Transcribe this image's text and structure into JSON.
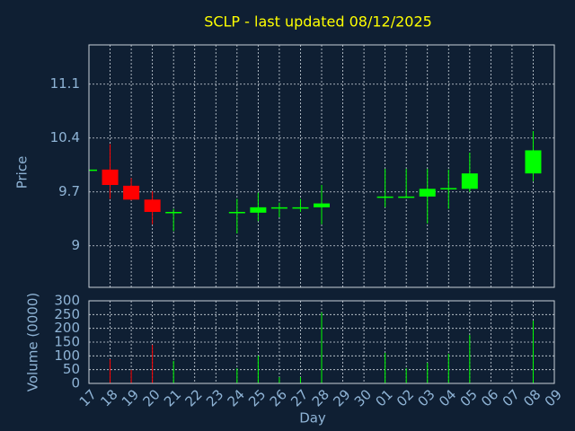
{
  "chart_data": {
    "type": "candlestick",
    "title": "SCLP - last updated 08/12/2025",
    "xlabel": "Day",
    "ylabel": "Price",
    "volume_label": "Volume (0000)",
    "categories": [
      "17",
      "18",
      "19",
      "20",
      "21",
      "22",
      "23",
      "24",
      "25",
      "26",
      "27",
      "28",
      "29",
      "30",
      "01",
      "02",
      "03",
      "04",
      "05",
      "06",
      "07",
      "08",
      "09"
    ],
    "open": [
      9.99,
      9.99,
      9.78,
      9.6,
      9.43,
      null,
      null,
      9.43,
      9.43,
      9.49,
      9.49,
      9.5,
      null,
      null,
      9.63,
      9.63,
      9.64,
      9.74,
      9.74,
      null,
      null,
      9.94,
      null
    ],
    "high": [
      9.99,
      10.32,
      9.88,
      9.71,
      9.48,
      null,
      null,
      9.61,
      9.69,
      9.56,
      9.61,
      9.79,
      null,
      null,
      10.0,
      10.0,
      10.0,
      9.99,
      10.21,
      null,
      null,
      10.49,
      null
    ],
    "low": [
      9.99,
      9.61,
      9.59,
      9.28,
      9.19,
      null,
      null,
      9.16,
      9.32,
      9.37,
      9.44,
      9.28,
      null,
      null,
      9.5,
      9.62,
      9.29,
      9.48,
      9.7,
      null,
      null,
      9.84,
      null
    ],
    "close": [
      9.99,
      9.79,
      9.6,
      9.44,
      9.44,
      null,
      null,
      9.44,
      9.5,
      9.5,
      9.5,
      9.55,
      null,
      null,
      9.64,
      9.64,
      9.74,
      9.75,
      9.94,
      null,
      null,
      10.24,
      null
    ],
    "volume": [
      0,
      88,
      49,
      140,
      82,
      null,
      null,
      55,
      101,
      23,
      23,
      258,
      null,
      null,
      111,
      55,
      75,
      108,
      176,
      null,
      null,
      228,
      null
    ],
    "up_color": "#00ff00",
    "down_color": "#ff0000",
    "ylim": [
      8.46,
      11.61
    ],
    "yticks": [
      9,
      9.7,
      10.4,
      11.1
    ],
    "volume_ylim": [
      0,
      300
    ],
    "volume_yticks": [
      0,
      50,
      100,
      150,
      200,
      250,
      300
    ],
    "grid": true
  }
}
